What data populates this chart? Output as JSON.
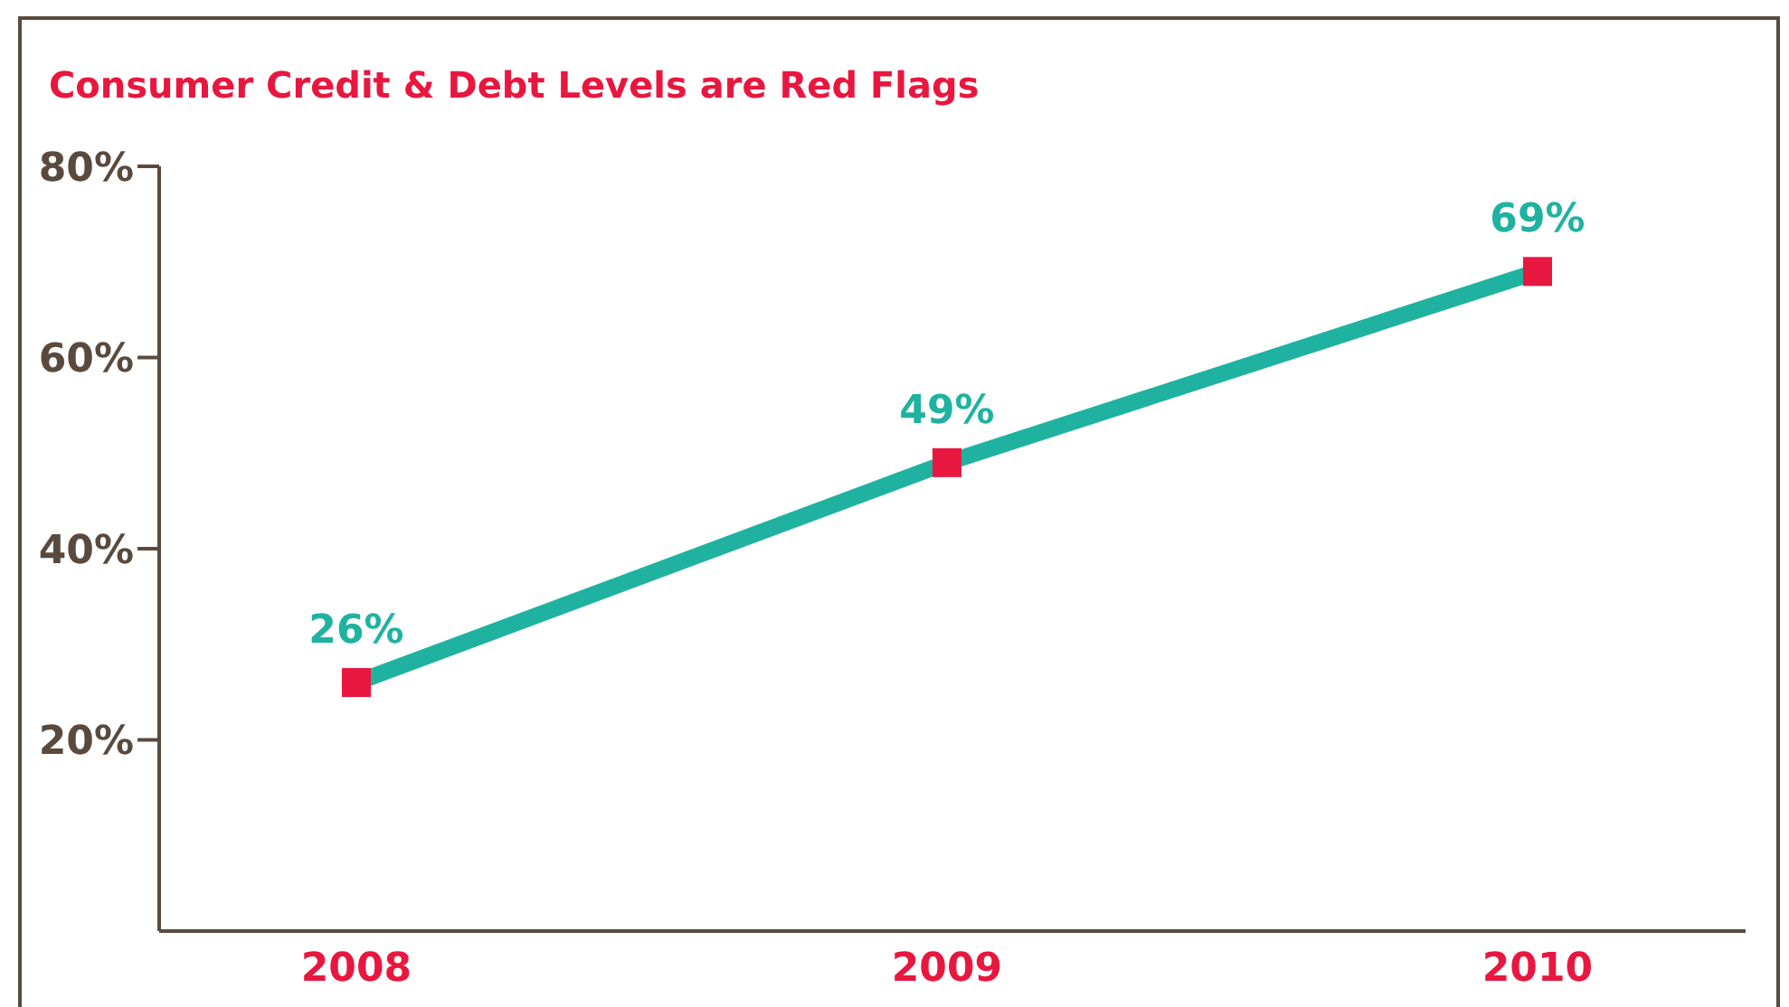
{
  "chart_data": {
    "type": "line",
    "title": "Consumer Credit & Debt Levels are Red Flags",
    "categories": [
      "2008",
      "2009",
      "2010"
    ],
    "series": [
      {
        "color": "#20b2a0",
        "colors": [
          "#e8173f",
          "#e8173f",
          "#e8173f"
        ],
        "values": [
          26,
          49,
          69
        ],
        "value_labels": [
          "26%",
          "49%",
          "69%"
        ]
      }
    ],
    "ylim": [
      0,
      80
    ],
    "yticks": [
      {
        "value": 20,
        "label": "20%"
      },
      {
        "value": 40,
        "label": "40%"
      },
      {
        "value": 60,
        "label": "60%"
      },
      {
        "value": 80,
        "label": "80%"
      }
    ],
    "grid": false,
    "legend": false,
    "marker": "square",
    "line_style": "solid"
  }
}
